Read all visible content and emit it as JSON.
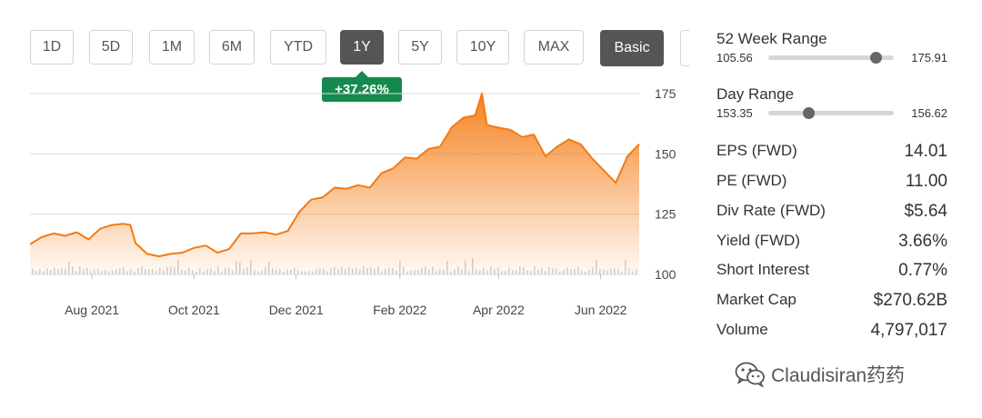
{
  "range_buttons": [
    "1D",
    "5D",
    "1M",
    "6M",
    "YTD",
    "1Y",
    "5Y",
    "10Y",
    "MAX"
  ],
  "active_range": "1Y",
  "view_button": "Basic",
  "change_badge": "+37.26%",
  "colors": {
    "line": "#f47a14",
    "fill_top": "#f57c14",
    "badge": "#148a4e",
    "active_button": "#555555"
  },
  "chart_data": {
    "type": "area",
    "title": "",
    "xlabel": "",
    "ylabel": "",
    "x_tick_labels": [
      "Aug 2021",
      "Oct 2021",
      "Dec 2021",
      "Feb 2022",
      "Apr 2022",
      "Jun 2022"
    ],
    "y_tick_labels": [
      "100",
      "125",
      "150",
      "175"
    ],
    "ylim": [
      100,
      175
    ],
    "grid": "horizontal",
    "volume_bars": true,
    "series": [
      {
        "x": [
          "2021-07-09",
          "2021-07-16",
          "2021-07-23",
          "2021-07-30",
          "2021-08-06",
          "2021-08-13",
          "2021-08-20",
          "2021-08-27",
          "2021-09-03",
          "2021-09-07",
          "2021-09-10",
          "2021-09-17",
          "2021-09-24",
          "2021-10-01",
          "2021-10-08",
          "2021-10-15",
          "2021-10-22",
          "2021-10-29",
          "2021-11-05",
          "2021-11-12",
          "2021-11-19",
          "2021-11-26",
          "2021-12-03",
          "2021-12-10",
          "2021-12-17",
          "2021-12-24",
          "2021-12-31",
          "2022-01-07",
          "2022-01-14",
          "2022-01-21",
          "2022-01-28",
          "2022-02-04",
          "2022-02-11",
          "2022-02-18",
          "2022-02-25",
          "2022-03-04",
          "2022-03-11",
          "2022-03-18",
          "2022-03-25",
          "2022-04-01",
          "2022-04-05",
          "2022-04-08",
          "2022-04-14",
          "2022-04-22",
          "2022-04-29",
          "2022-05-06",
          "2022-05-13",
          "2022-05-20",
          "2022-05-27",
          "2022-06-03",
          "2022-06-10",
          "2022-06-17",
          "2022-06-24",
          "2022-07-01",
          "2022-07-08"
        ],
        "values": [
          112.5,
          115.5,
          117,
          116,
          117.5,
          114.5,
          119,
          120.5,
          121,
          120.5,
          113,
          108.5,
          107.5,
          108.5,
          109,
          111,
          112,
          109,
          110.5,
          117,
          117,
          117.5,
          116.5,
          118,
          126,
          131,
          132,
          136,
          135.5,
          137,
          136,
          142,
          144,
          148.5,
          148,
          152,
          153,
          161,
          165,
          166,
          175,
          162,
          161,
          160,
          157,
          158,
          149,
          153,
          156,
          154,
          148,
          143,
          138,
          149,
          154
        ]
      }
    ]
  },
  "stats": {
    "week52": {
      "label": "52 Week Range",
      "low": "105.56",
      "high": "175.91",
      "position": 0.86
    },
    "day": {
      "label": "Day Range",
      "low": "153.35",
      "high": "156.62",
      "position": 0.32
    },
    "rows": [
      {
        "label": "EPS (FWD)",
        "value": "14.01"
      },
      {
        "label": "PE (FWD)",
        "value": "11.00"
      },
      {
        "label": "Div Rate (FWD)",
        "value": "$5.64"
      },
      {
        "label": "Yield (FWD)",
        "value": "3.66%"
      },
      {
        "label": "Short Interest",
        "value": "0.77%"
      },
      {
        "label": "Market Cap",
        "value": "$270.62B"
      },
      {
        "label": "Volume",
        "value": "4,797,017"
      }
    ]
  },
  "watermark": {
    "text": "Claudisiran药药",
    "icon": "wechat-icon"
  }
}
